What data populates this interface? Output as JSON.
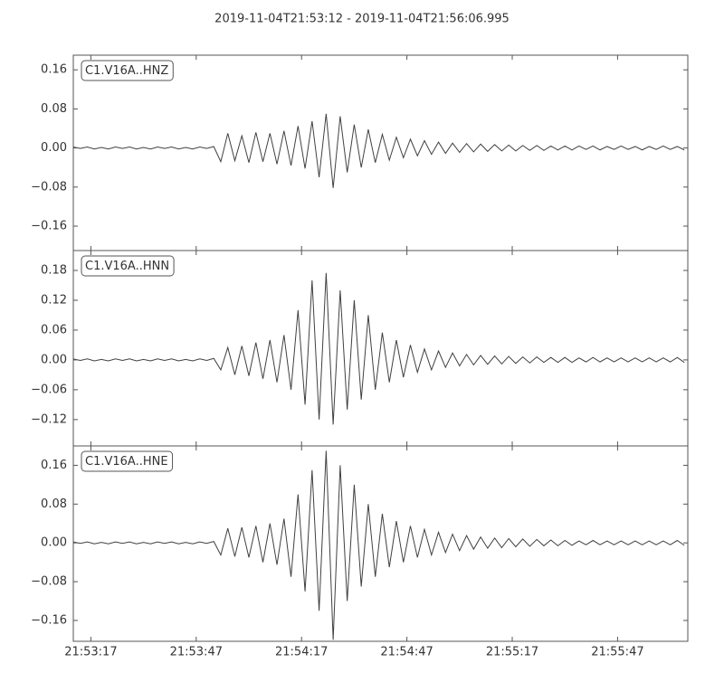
{
  "title": "2019-11-04T21:53:12  -  2019-11-04T21:56:06.995",
  "chart_data": [
    {
      "type": "line",
      "x": [
        0,
        2,
        4,
        6,
        8,
        10,
        12,
        14,
        16,
        18,
        20,
        22,
        24,
        26,
        28,
        30,
        32,
        34,
        36,
        38,
        40,
        42,
        44,
        46,
        48,
        50,
        52,
        54,
        56,
        58,
        60,
        62,
        64,
        66,
        68,
        70,
        72,
        74,
        76,
        78,
        80,
        82,
        84,
        86,
        88,
        90,
        92,
        94,
        96,
        98,
        100,
        102,
        104,
        106,
        108,
        110,
        112,
        114,
        116,
        118,
        120,
        122,
        124,
        126,
        128,
        130,
        132,
        134,
        136,
        138,
        140,
        142,
        144,
        146,
        148,
        150,
        152,
        154,
        156,
        158,
        160,
        162,
        164,
        166,
        168,
        170,
        172,
        174
      ],
      "series": [
        {
          "name": "C1.V16A..HNZ",
          "color": "#404040",
          "values": [
            0.002,
            -0.001,
            0.002,
            -0.002,
            0.001,
            -0.002,
            0.002,
            -0.001,
            0.002,
            -0.002,
            0.001,
            -0.002,
            0.002,
            -0.001,
            0.002,
            -0.002,
            0.001,
            -0.002,
            0.002,
            -0.001,
            0.003,
            -0.028,
            0.03,
            -0.026,
            0.025,
            -0.03,
            0.032,
            -0.028,
            0.03,
            -0.033,
            0.035,
            -0.036,
            0.045,
            -0.042,
            0.055,
            -0.06,
            0.07,
            -0.082,
            0.065,
            -0.05,
            0.048,
            -0.04,
            0.038,
            -0.03,
            0.028,
            -0.025,
            0.022,
            -0.02,
            0.018,
            -0.016,
            0.015,
            -0.013,
            0.012,
            -0.011,
            0.01,
            -0.009,
            0.009,
            -0.008,
            0.008,
            -0.007,
            0.007,
            -0.006,
            0.006,
            -0.006,
            0.005,
            -0.005,
            0.005,
            -0.005,
            0.004,
            -0.004,
            0.004,
            -0.004,
            0.004,
            -0.003,
            0.004,
            -0.004,
            0.003,
            -0.003,
            0.004,
            -0.003,
            0.003,
            -0.004,
            0.003,
            -0.003,
            0.004,
            -0.003,
            0.003,
            -0.004
          ]
        }
      ],
      "xlim": [
        0,
        174.995
      ],
      "xticks": [
        5,
        35,
        65,
        95,
        125,
        155
      ],
      "ylim": [
        -0.21,
        0.19
      ],
      "yticks": [
        {
          "value": -0.16,
          "label": "−0.16"
        },
        {
          "value": -0.08,
          "label": "−0.08"
        },
        {
          "value": 0,
          "label": "0.00"
        },
        {
          "value": 0.08,
          "label": "0.08"
        },
        {
          "value": 0.16,
          "label": "0.16"
        }
      ],
      "legend": "upper left"
    },
    {
      "type": "line",
      "x": [
        0,
        2,
        4,
        6,
        8,
        10,
        12,
        14,
        16,
        18,
        20,
        22,
        24,
        26,
        28,
        30,
        32,
        34,
        36,
        38,
        40,
        42,
        44,
        46,
        48,
        50,
        52,
        54,
        56,
        58,
        60,
        62,
        64,
        66,
        68,
        70,
        72,
        74,
        76,
        78,
        80,
        82,
        84,
        86,
        88,
        90,
        92,
        94,
        96,
        98,
        100,
        102,
        104,
        106,
        108,
        110,
        112,
        114,
        116,
        118,
        120,
        122,
        124,
        126,
        128,
        130,
        132,
        134,
        136,
        138,
        140,
        142,
        144,
        146,
        148,
        150,
        152,
        154,
        156,
        158,
        160,
        162,
        164,
        166,
        168,
        170,
        172,
        174
      ],
      "series": [
        {
          "name": "C1.V16A..HNN",
          "color": "#404040",
          "values": [
            0.002,
            -0.001,
            0.002,
            -0.002,
            0.001,
            -0.002,
            0.002,
            -0.001,
            0.002,
            -0.002,
            0.001,
            -0.002,
            0.002,
            -0.001,
            0.002,
            -0.002,
            0.001,
            -0.002,
            0.002,
            -0.001,
            0.003,
            -0.02,
            0.025,
            -0.03,
            0.028,
            -0.032,
            0.035,
            -0.038,
            0.04,
            -0.045,
            0.05,
            -0.06,
            0.1,
            -0.09,
            0.16,
            -0.12,
            0.175,
            -0.13,
            0.14,
            -0.1,
            0.12,
            -0.08,
            0.09,
            -0.06,
            0.055,
            -0.045,
            0.04,
            -0.035,
            0.03,
            -0.025,
            0.022,
            -0.02,
            0.018,
            -0.015,
            0.014,
            -0.012,
            0.011,
            -0.01,
            0.009,
            -0.009,
            0.008,
            -0.008,
            0.007,
            -0.007,
            0.006,
            -0.006,
            0.006,
            -0.005,
            0.005,
            -0.005,
            0.005,
            -0.005,
            0.004,
            -0.004,
            0.005,
            -0.004,
            0.004,
            -0.004,
            0.004,
            -0.004,
            0.004,
            -0.004,
            0.004,
            -0.004,
            0.004,
            -0.004,
            0.005,
            -0.005
          ]
        }
      ],
      "xlim": [
        0,
        174.995
      ],
      "xticks": [
        5,
        35,
        65,
        95,
        125,
        155
      ],
      "ylim": [
        -0.173,
        0.22
      ],
      "yticks": [
        {
          "value": -0.12,
          "label": "−0.12"
        },
        {
          "value": -0.06,
          "label": "−0.06"
        },
        {
          "value": 0,
          "label": "0.00"
        },
        {
          "value": 0.06,
          "label": "0.06"
        },
        {
          "value": 0.12,
          "label": "0.12"
        },
        {
          "value": 0.18,
          "label": "0.18"
        }
      ],
      "legend": "upper left"
    },
    {
      "type": "line",
      "x": [
        0,
        2,
        4,
        6,
        8,
        10,
        12,
        14,
        16,
        18,
        20,
        22,
        24,
        26,
        28,
        30,
        32,
        34,
        36,
        38,
        40,
        42,
        44,
        46,
        48,
        50,
        52,
        54,
        56,
        58,
        60,
        62,
        64,
        66,
        68,
        70,
        72,
        74,
        76,
        78,
        80,
        82,
        84,
        86,
        88,
        90,
        92,
        94,
        96,
        98,
        100,
        102,
        104,
        106,
        108,
        110,
        112,
        114,
        116,
        118,
        120,
        122,
        124,
        126,
        128,
        130,
        132,
        134,
        136,
        138,
        140,
        142,
        144,
        146,
        148,
        150,
        152,
        154,
        156,
        158,
        160,
        162,
        164,
        166,
        168,
        170,
        172,
        174
      ],
      "series": [
        {
          "name": "C1.V16A..HNE",
          "color": "#404040",
          "values": [
            0.002,
            -0.001,
            0.002,
            -0.002,
            0.001,
            -0.002,
            0.002,
            -0.001,
            0.002,
            -0.002,
            0.001,
            -0.002,
            0.002,
            -0.001,
            0.002,
            -0.002,
            0.001,
            -0.002,
            0.002,
            -0.001,
            0.003,
            -0.025,
            0.03,
            -0.028,
            0.032,
            -0.03,
            0.035,
            -0.04,
            0.04,
            -0.045,
            0.05,
            -0.07,
            0.1,
            -0.1,
            0.15,
            -0.14,
            0.19,
            -0.2,
            0.16,
            -0.12,
            0.12,
            -0.09,
            0.08,
            -0.07,
            0.06,
            -0.05,
            0.045,
            -0.04,
            0.035,
            -0.03,
            0.028,
            -0.025,
            0.022,
            -0.02,
            0.018,
            -0.016,
            0.015,
            -0.013,
            0.012,
            -0.011,
            0.01,
            -0.01,
            0.009,
            -0.008,
            0.008,
            -0.007,
            0.007,
            -0.006,
            0.006,
            -0.006,
            0.005,
            -0.005,
            0.004,
            -0.004,
            0.005,
            -0.004,
            0.004,
            -0.004,
            0.004,
            -0.004,
            0.004,
            -0.004,
            0.004,
            -0.004,
            0.004,
            -0.004,
            0.005,
            -0.005
          ]
        }
      ],
      "xlim": [
        0,
        174.995
      ],
      "xticks": [
        {
          "value": 5,
          "label": "21:53:17"
        },
        {
          "value": 35,
          "label": "21:53:47"
        },
        {
          "value": 65,
          "label": "21:54:17"
        },
        {
          "value": 95,
          "label": "21:54:47"
        },
        {
          "value": 125,
          "label": "21:55:17"
        },
        {
          "value": 155,
          "label": "21:55:47"
        }
      ],
      "ylim": [
        -0.203,
        0.2
      ],
      "yticks": [
        {
          "value": -0.16,
          "label": "−0.16"
        },
        {
          "value": -0.08,
          "label": "−0.08"
        },
        {
          "value": 0,
          "label": "0.00"
        },
        {
          "value": 0.08,
          "label": "0.08"
        },
        {
          "value": 0.16,
          "label": "0.16"
        }
      ],
      "legend": "upper left"
    }
  ]
}
